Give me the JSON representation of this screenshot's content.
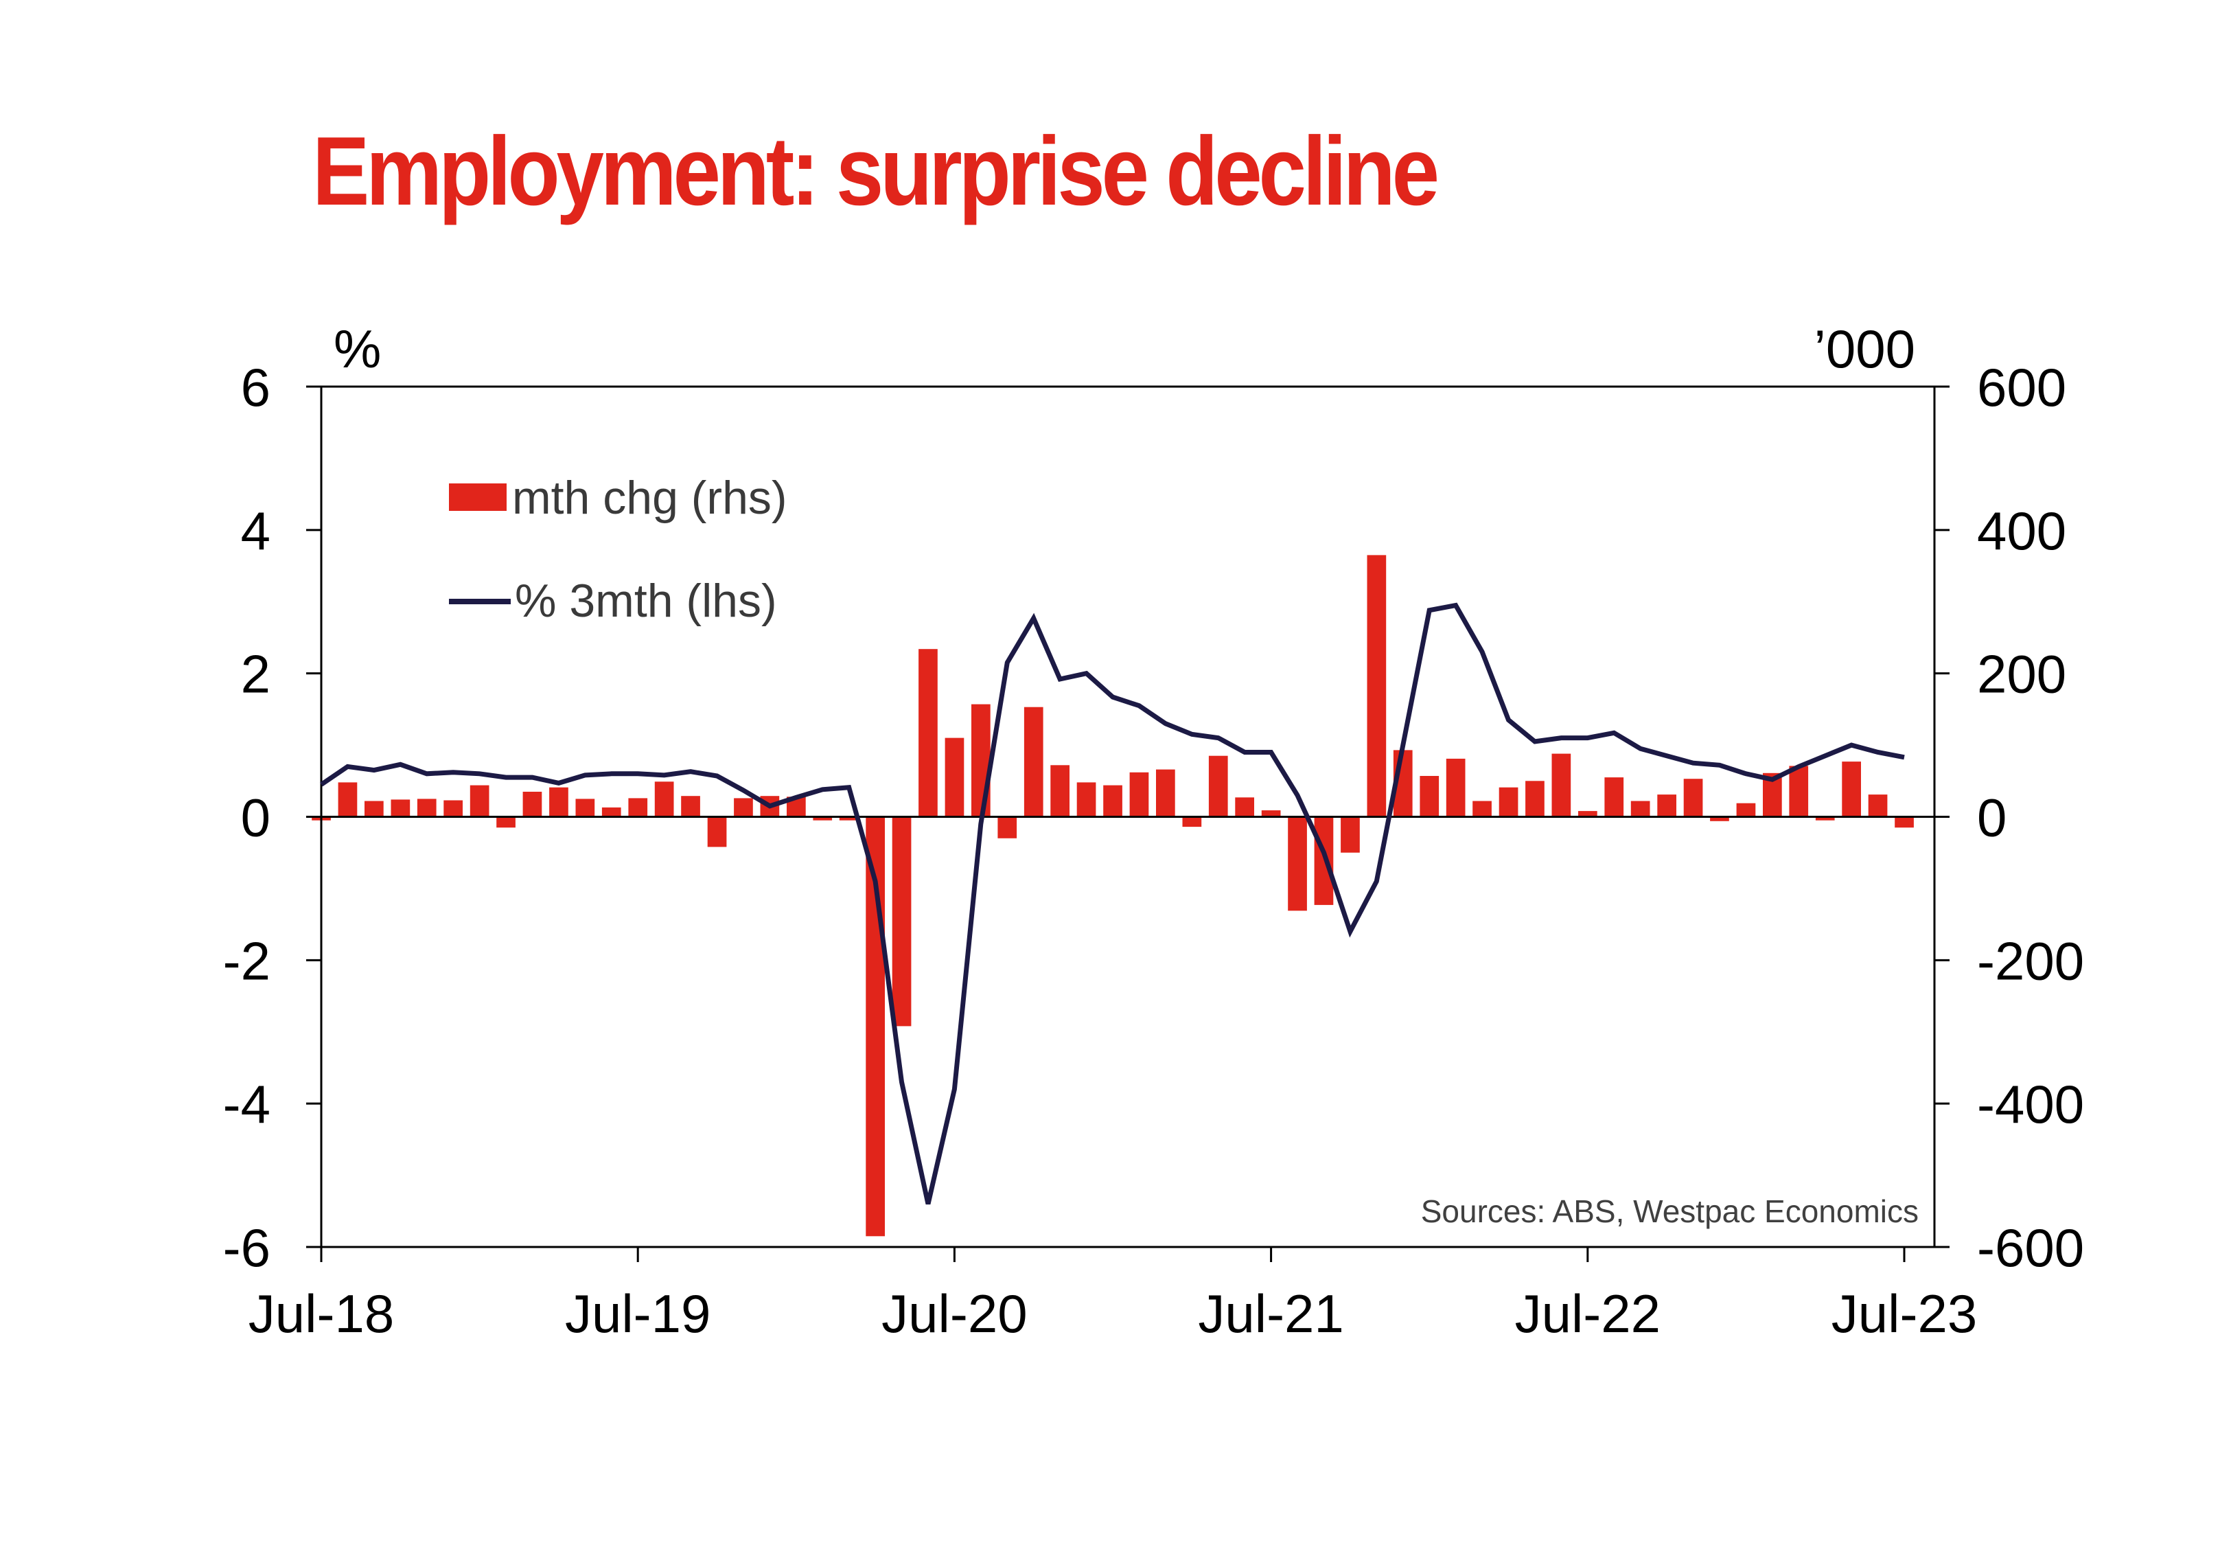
{
  "title": "Employment: surprise decline",
  "source": "Sources: ABS, Westpac Economics",
  "colors": {
    "title": "#e1251b",
    "bar": "#e1251b",
    "line": "#1c1a45",
    "axis": "#000000"
  },
  "chart_data": {
    "type": "bar+line",
    "left_axis": {
      "unit": "%",
      "ylim": [
        -6,
        6
      ],
      "ticks": [
        "-6",
        "-4",
        "-2",
        "0",
        "2",
        "4",
        "6"
      ]
    },
    "right_axis": {
      "unit": "’000",
      "ylim": [
        -600,
        600
      ],
      "ticks": [
        "-600",
        "-400",
        "-200",
        "0",
        "200",
        "400",
        "600"
      ]
    },
    "x_ticks": [
      "Jul-18",
      "Jul-19",
      "Jul-20",
      "Jul-21",
      "Jul-22",
      "Jul-23"
    ],
    "x_start": "Jul-18",
    "x_end": "Jul-23",
    "legend": "top-left",
    "series": [
      {
        "name": "mth chg (rhs)",
        "type": "bar",
        "axis": "right",
        "values": [
          -5,
          48,
          22,
          24,
          25,
          23,
          44,
          -15,
          35,
          41,
          25,
          13,
          26,
          49,
          29,
          -42,
          26,
          29,
          28,
          -5,
          -5,
          -585,
          -292,
          234,
          110,
          157,
          -30,
          153,
          72,
          48,
          44,
          62,
          66,
          -14,
          85,
          27,
          9,
          -131,
          -123,
          -50,
          365,
          93,
          57,
          81,
          22,
          41,
          50,
          88,
          8,
          55,
          22,
          31,
          53,
          -6,
          19,
          61,
          71,
          -5,
          77,
          31,
          -15
        ]
      },
      {
        "name": "% 3mth (lhs)",
        "type": "line",
        "axis": "left",
        "values": [
          0.45,
          0.7,
          0.65,
          0.73,
          0.6,
          0.62,
          0.6,
          0.55,
          0.55,
          0.47,
          0.58,
          0.6,
          0.6,
          0.58,
          0.63,
          0.57,
          0.37,
          0.15,
          0.27,
          0.38,
          0.41,
          -0.9,
          -3.7,
          -5.4,
          -3.8,
          -0.1,
          2.15,
          2.77,
          1.92,
          2.0,
          1.67,
          1.55,
          1.3,
          1.15,
          1.1,
          0.9,
          0.9,
          0.3,
          -0.5,
          -1.6,
          -0.9,
          1.0,
          2.88,
          2.95,
          2.3,
          1.35,
          1.05,
          1.1,
          1.1,
          1.17,
          0.95,
          0.85,
          0.75,
          0.72,
          0.6,
          0.52,
          0.7,
          0.85,
          1.0,
          0.9,
          0.83
        ]
      }
    ]
  }
}
